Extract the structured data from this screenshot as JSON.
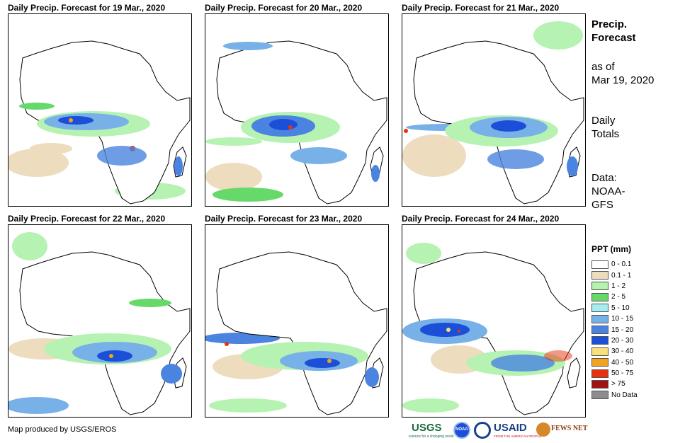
{
  "panels": [
    {
      "title": "Daily Precip. Forecast for 19 Mar., 2020"
    },
    {
      "title": "Daily Precip. Forecast for 20 Mar., 2020"
    },
    {
      "title": "Daily Precip. Forecast for 21 Mar., 2020"
    },
    {
      "title": "Daily Precip. Forecast for 22 Mar., 2020"
    },
    {
      "title": "Daily Precip. Forecast for 23 Mar., 2020"
    },
    {
      "title": "Daily Precip. Forecast for 24 Mar., 2020"
    }
  ],
  "info": {
    "heading_line1": "Precip.",
    "heading_line2": "Forecast",
    "asof_line1": "as of",
    "asof_line2": "Mar 19, 2020",
    "totals_line1": "Daily",
    "totals_line2": "Totals",
    "data_line1": "Data:",
    "data_line2": "NOAA-",
    "data_line3": "GFS"
  },
  "legend": {
    "title": "PPT (mm)",
    "items": [
      {
        "label": "0 - 0.1",
        "color": "#ffffff"
      },
      {
        "label": "0.1 - 1",
        "color": "#eedcbe"
      },
      {
        "label": "1 - 2",
        "color": "#b6f2b2"
      },
      {
        "label": "2 - 5",
        "color": "#66d96a"
      },
      {
        "label": "5 - 10",
        "color": "#a6ecf0"
      },
      {
        "label": "10 - 15",
        "color": "#78b0e8"
      },
      {
        "label": "15 - 20",
        "color": "#4a84e0"
      },
      {
        "label": "20 - 30",
        "color": "#1c4fd8"
      },
      {
        "label": "30 - 40",
        "color": "#f8e07a"
      },
      {
        "label": "40 - 50",
        "color": "#f0a41e"
      },
      {
        "label": "50 - 75",
        "color": "#e8320e"
      },
      {
        "label": "> 75",
        "color": "#a01414"
      },
      {
        "label": "No Data",
        "color": "#8c8c8c"
      }
    ]
  },
  "credit": "Map produced by USGS/EROS",
  "logos": {
    "usgs": "USGS",
    "usgs_tagline": "science for a changing world",
    "noaa": "NOAA",
    "usaid": "USAID",
    "usaid_tagline": "FROM THE AMERICAN PEOPLE",
    "fewsnet": "FEWS NET"
  }
}
